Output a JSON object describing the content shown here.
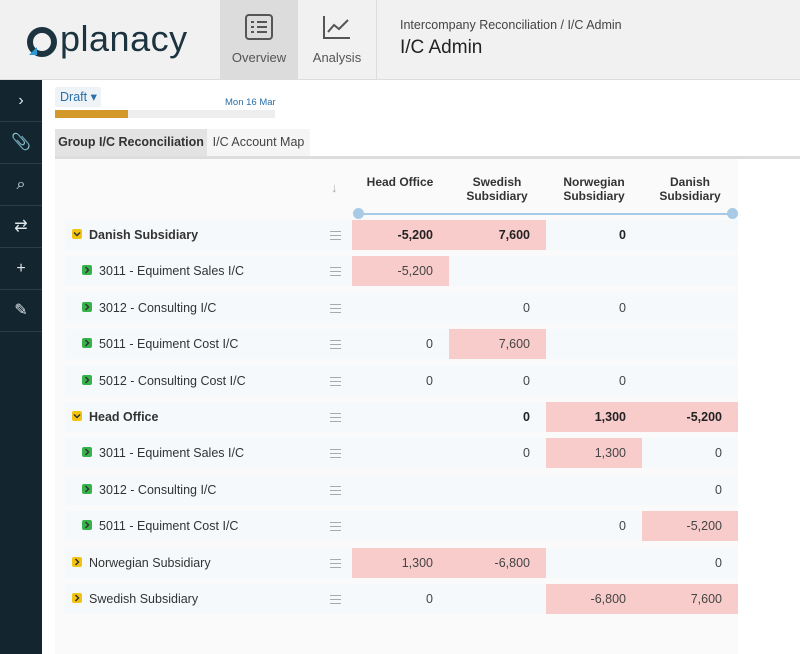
{
  "header": {
    "logo": "planacy",
    "nav": [
      {
        "label": "Overview"
      },
      {
        "label": "Analysis"
      }
    ],
    "breadcrumb": "Intercompany Reconciliation / I/C Admin",
    "title": "I/C Admin"
  },
  "toolbar": {
    "status": "Draft",
    "date": "Mon 16 Mar"
  },
  "tabs": [
    "Group I/C Reconciliation",
    "I/C Account Map"
  ],
  "table": {
    "columns": [
      "Head Office",
      "Swedish Subsidiary",
      "Norwegian Subsidiary",
      "Danish Subsidiary"
    ],
    "rows": [
      {
        "label": "Danish Subsidiary",
        "group": true,
        "expanded": true,
        "cells": [
          "-5,200",
          "7,600",
          "0",
          null
        ],
        "highlight": [
          0,
          1
        ]
      },
      {
        "label": "3011 - Equiment Sales I/C",
        "group": false,
        "cells": [
          "-5,200",
          null,
          null,
          null
        ],
        "highlight": [
          0
        ]
      },
      {
        "label": "3012 - Consulting I/C",
        "group": false,
        "cells": [
          null,
          "0",
          "0",
          null
        ],
        "highlight": []
      },
      {
        "label": "5011 - Equiment Cost I/C",
        "group": false,
        "cells": [
          "0",
          "7,600",
          null,
          null
        ],
        "highlight": [
          1
        ]
      },
      {
        "label": "5012 - Consulting Cost I/C",
        "group": false,
        "cells": [
          "0",
          "0",
          "0",
          null
        ],
        "highlight": []
      },
      {
        "label": "Head Office",
        "group": true,
        "expanded": true,
        "cells": [
          null,
          "0",
          "1,300",
          "-5,200"
        ],
        "highlight": [
          2,
          3
        ]
      },
      {
        "label": "3011 - Equiment Sales I/C",
        "group": false,
        "cells": [
          null,
          "0",
          "1,300",
          "0"
        ],
        "highlight": [
          2
        ]
      },
      {
        "label": "3012 - Consulting I/C",
        "group": false,
        "cells": [
          null,
          null,
          null,
          "0"
        ],
        "highlight": []
      },
      {
        "label": "5011 - Equiment Cost I/C",
        "group": false,
        "cells": [
          null,
          null,
          "0",
          "-5,200"
        ],
        "highlight": [
          3
        ]
      },
      {
        "label": "Norwegian Subsidiary",
        "group": true,
        "expanded": false,
        "cells": [
          "1,300",
          "-6,800",
          null,
          "0"
        ],
        "highlight": [
          0,
          1
        ]
      },
      {
        "label": "Swedish Subsidiary",
        "group": true,
        "expanded": false,
        "cells": [
          "0",
          null,
          "-6,800",
          "7,600"
        ],
        "highlight": [
          2,
          3
        ]
      }
    ]
  }
}
